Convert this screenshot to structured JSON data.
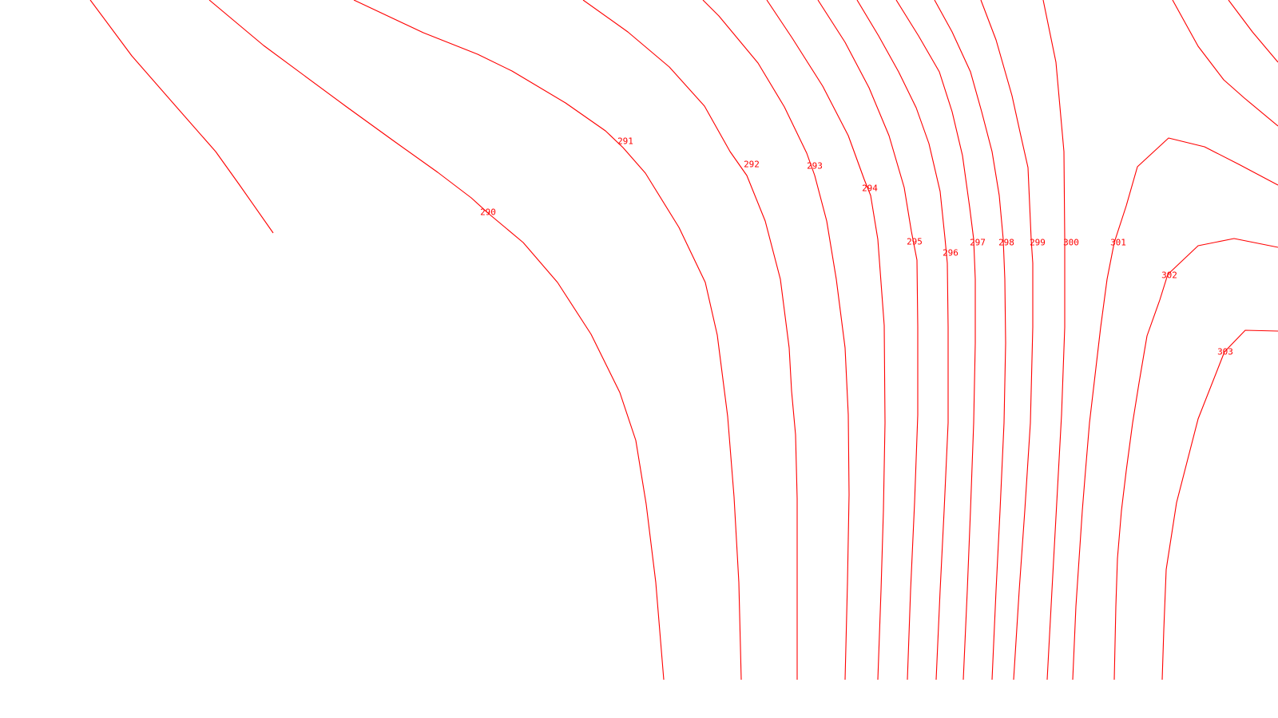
{
  "style": {
    "line_color": "#ff0000",
    "label_color": "#ff0000",
    "background": "#ffffff"
  },
  "contours": [
    {
      "value": "290"
    },
    {
      "value": "291"
    },
    {
      "value": "292"
    },
    {
      "value": "293"
    },
    {
      "value": "294"
    },
    {
      "value": "295"
    },
    {
      "value": "296"
    },
    {
      "value": "297"
    },
    {
      "value": "298"
    },
    {
      "value": "299"
    },
    {
      "value": "300"
    },
    {
      "value": "301"
    },
    {
      "value": "302"
    },
    {
      "value": "303"
    }
  ]
}
